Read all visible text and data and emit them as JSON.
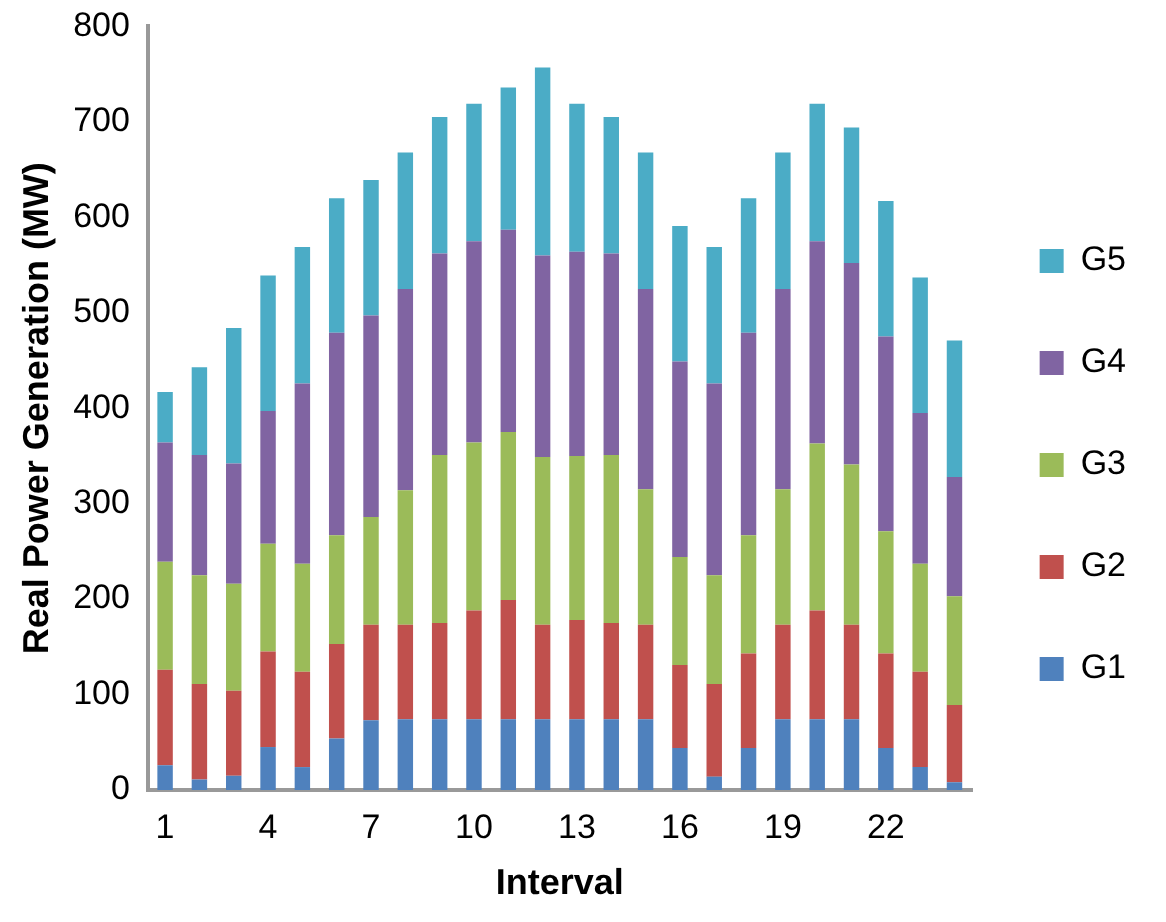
{
  "chart_data": {
    "type": "bar",
    "stacked": true,
    "xlabel": "Interval",
    "ylabel": "Real Power Generation (MW)",
    "categories": [
      "1",
      null,
      null,
      "4",
      null,
      null,
      "7",
      null,
      null,
      "10",
      null,
      null,
      "13",
      null,
      null,
      "16",
      null,
      null,
      "19",
      null,
      null,
      "22",
      null,
      null
    ],
    "series": [
      {
        "name": "G1",
        "color": "#4f81bd",
        "values": [
          26,
          11,
          15,
          45,
          24,
          54,
          73,
          74,
          74,
          74,
          74,
          74,
          74,
          74,
          74,
          44,
          14,
          44,
          74,
          74,
          74,
          44,
          24,
          8
        ]
      },
      {
        "name": "G2",
        "color": "#c0504d",
        "values": [
          100,
          100,
          89,
          100,
          100,
          99,
          100,
          99,
          101,
          114,
          125,
          99,
          104,
          101,
          99,
          87,
          97,
          99,
          99,
          114,
          99,
          99,
          100,
          81
        ]
      },
      {
        "name": "G3",
        "color": "#9bbb59",
        "values": [
          113,
          114,
          112,
          113,
          113,
          114,
          113,
          141,
          176,
          176,
          176,
          176,
          172,
          176,
          142,
          113,
          114,
          124,
          142,
          175,
          168,
          128,
          113,
          114
        ]
      },
      {
        "name": "G4",
        "color": "#8064a2",
        "values": [
          125,
          126,
          126,
          139,
          189,
          212,
          211,
          211,
          211,
          211,
          212,
          211,
          214,
          211,
          210,
          205,
          201,
          212,
          210,
          212,
          211,
          204,
          158,
          125
        ]
      },
      {
        "name": "G5",
        "color": "#4bacc6",
        "values": [
          53,
          92,
          142,
          142,
          143,
          141,
          142,
          143,
          143,
          144,
          149,
          197,
          155,
          143,
          143,
          142,
          143,
          141,
          143,
          144,
          142,
          142,
          142,
          143
        ]
      }
    ],
    "ylim": [
      0,
      800
    ],
    "yticks": [
      0,
      100,
      200,
      300,
      400,
      500,
      600,
      700,
      800
    ],
    "grid": false,
    "legend": "right"
  }
}
